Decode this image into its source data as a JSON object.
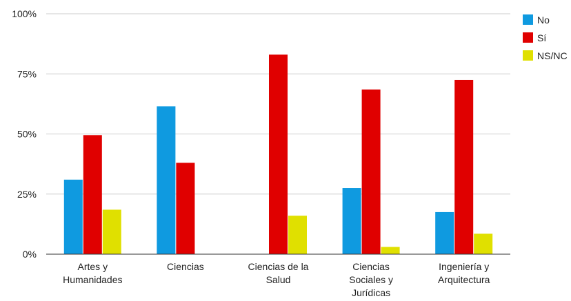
{
  "chart_data": {
    "type": "bar",
    "categories": [
      [
        "Artes y",
        "Humanidades"
      ],
      [
        "Ciencias"
      ],
      [
        "Ciencias de la",
        "Salud"
      ],
      [
        "Ciencias",
        "Sociales y",
        "Jurídicas"
      ],
      [
        "Ingeniería y",
        "Arquitectura"
      ]
    ],
    "series": [
      {
        "name": "No",
        "color": "#0f9ae0",
        "values": [
          31,
          61.5,
          0,
          27.5,
          17.5
        ]
      },
      {
        "name": "Sí",
        "color": "#e00000",
        "values": [
          49.5,
          38,
          83,
          68.5,
          72.5
        ]
      },
      {
        "name": "NS/NC",
        "color": "#e0e000",
        "values": [
          18.5,
          0,
          16,
          3,
          8.5
        ]
      }
    ],
    "yticks": [
      0,
      25,
      50,
      75,
      100
    ],
    "ytick_labels": [
      "0%",
      "25%",
      "50%",
      "75%",
      "100%"
    ],
    "ylim": [
      0,
      100
    ],
    "grid": true,
    "legend": "right"
  }
}
